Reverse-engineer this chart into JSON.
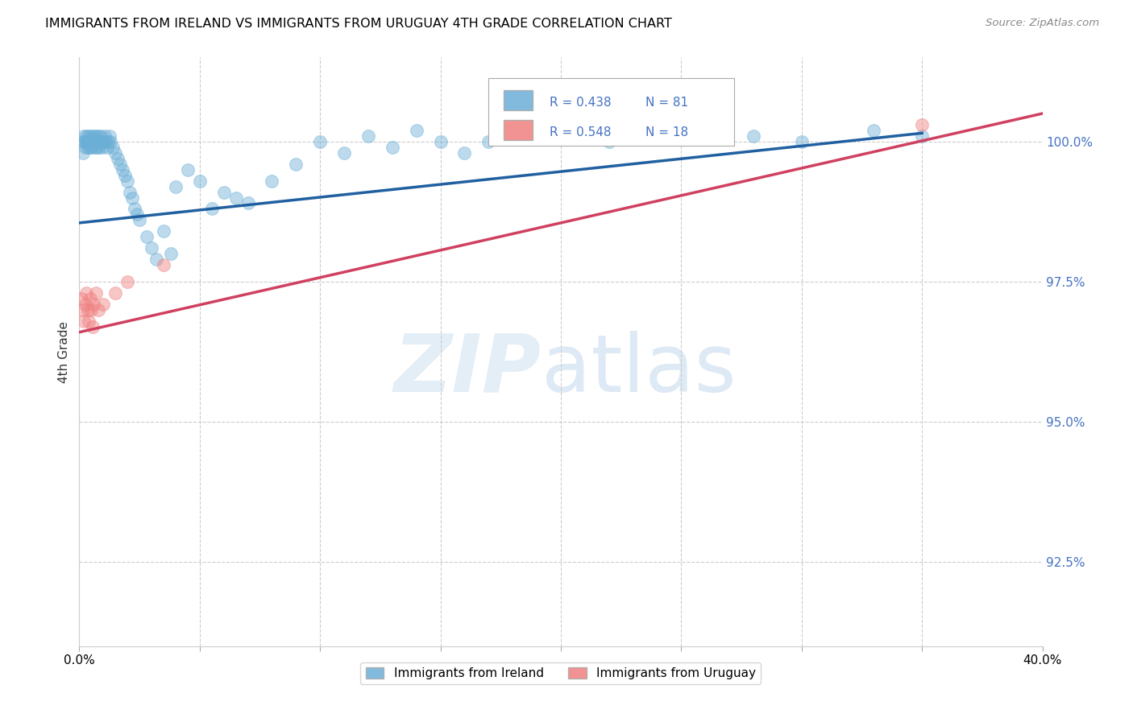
{
  "title": "IMMIGRANTS FROM IRELAND VS IMMIGRANTS FROM URUGUAY 4TH GRADE CORRELATION CHART",
  "source": "Source: ZipAtlas.com",
  "ylabel_label": "4th Grade",
  "xlim": [
    0.0,
    40.0
  ],
  "ylim": [
    91.0,
    101.5
  ],
  "yticks": [
    92.5,
    95.0,
    97.5,
    100.0
  ],
  "xticks": [
    0.0,
    5.0,
    10.0,
    15.0,
    20.0,
    25.0,
    30.0,
    35.0,
    40.0
  ],
  "ireland_color": "#6baed6",
  "uruguay_color": "#f08080",
  "ireland_line_color": "#2060a0",
  "uruguay_line_color": "#d04060",
  "ireland_R": 0.438,
  "ireland_N": 81,
  "uruguay_R": 0.548,
  "uruguay_N": 18,
  "ireland_x": [
    0.15,
    0.18,
    0.2,
    0.22,
    0.25,
    0.28,
    0.3,
    0.32,
    0.35,
    0.38,
    0.4,
    0.42,
    0.45,
    0.48,
    0.5,
    0.52,
    0.55,
    0.58,
    0.6,
    0.62,
    0.65,
    0.68,
    0.7,
    0.72,
    0.75,
    0.78,
    0.8,
    0.82,
    0.85,
    0.88,
    0.9,
    0.95,
    1.0,
    1.05,
    1.1,
    1.15,
    1.2,
    1.25,
    1.3,
    1.4,
    1.5,
    1.6,
    1.7,
    1.8,
    1.9,
    2.0,
    2.1,
    2.2,
    2.3,
    2.4,
    2.5,
    2.8,
    3.0,
    3.2,
    3.5,
    3.8,
    4.0,
    4.5,
    5.0,
    5.5,
    6.0,
    7.0,
    8.0,
    9.0,
    10.0,
    11.0,
    12.0,
    13.0,
    14.0,
    15.0,
    16.0,
    17.0,
    18.0,
    20.0,
    22.0,
    25.0,
    28.0,
    30.0,
    33.0,
    35.0,
    6.5
  ],
  "ireland_y": [
    99.8,
    100.0,
    100.1,
    100.0,
    99.9,
    100.0,
    100.1,
    100.0,
    99.9,
    100.0,
    100.1,
    100.0,
    99.9,
    100.0,
    100.1,
    99.9,
    100.0,
    100.0,
    100.1,
    100.0,
    99.9,
    100.0,
    100.1,
    99.9,
    100.0,
    100.1,
    100.0,
    99.9,
    100.0,
    100.0,
    100.1,
    99.9,
    100.0,
    100.1,
    100.0,
    99.9,
    100.0,
    100.1,
    100.0,
    99.9,
    99.8,
    99.7,
    99.6,
    99.5,
    99.4,
    99.3,
    99.1,
    99.0,
    98.8,
    98.7,
    98.6,
    98.3,
    98.1,
    97.9,
    98.4,
    98.0,
    99.2,
    99.5,
    99.3,
    98.8,
    99.1,
    98.9,
    99.3,
    99.6,
    100.0,
    99.8,
    100.1,
    99.9,
    100.2,
    100.0,
    99.8,
    100.0,
    100.2,
    100.1,
    100.0,
    100.2,
    100.1,
    100.0,
    100.2,
    100.1,
    99.0
  ],
  "uruguay_x": [
    0.1,
    0.15,
    0.2,
    0.25,
    0.3,
    0.35,
    0.4,
    0.45,
    0.5,
    0.55,
    0.6,
    0.7,
    0.8,
    1.0,
    1.5,
    2.0,
    3.5,
    35.0
  ],
  "uruguay_y": [
    97.2,
    97.0,
    96.8,
    97.1,
    97.3,
    97.0,
    96.8,
    97.2,
    97.0,
    96.7,
    97.1,
    97.3,
    97.0,
    97.1,
    97.3,
    97.5,
    97.8,
    100.3
  ],
  "ireland_trend": [
    0.0,
    35.0,
    98.55,
    100.15
  ],
  "uruguay_trend": [
    0.0,
    40.0,
    96.6,
    100.5
  ]
}
